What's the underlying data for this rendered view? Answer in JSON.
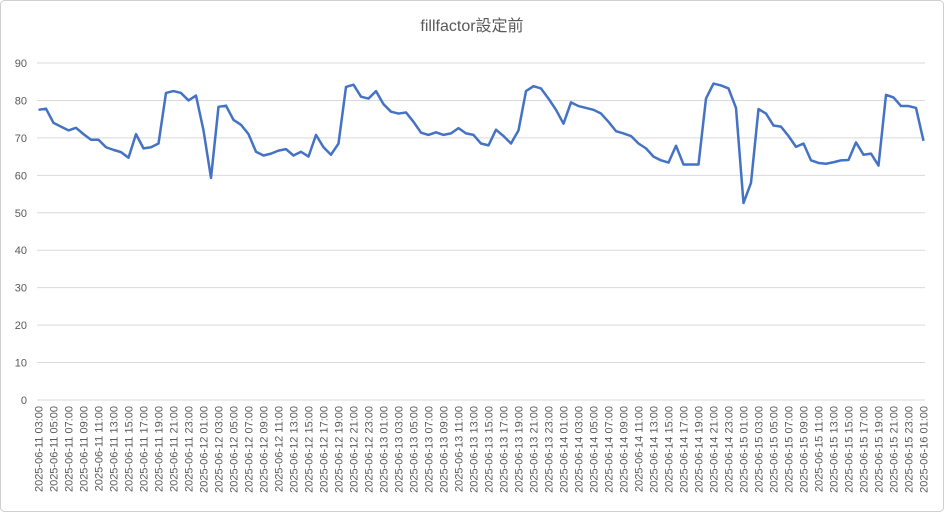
{
  "chart_data": {
    "type": "line",
    "title": "fillfactor設定前",
    "categories": [
      "2025-06-11 03:00",
      null,
      "2025-06-11 05:00",
      null,
      "2025-06-11 07:00",
      null,
      "2025-06-11 09:00",
      null,
      "2025-06-11 11:00",
      null,
      "2025-06-11 13:00",
      null,
      "2025-06-11 15:00",
      null,
      "2025-06-11 17:00",
      null,
      "2025-06-11 19:00",
      null,
      "2025-06-11 21:00",
      null,
      "2025-06-11 23:00",
      null,
      "2025-06-12 01:00",
      null,
      "2025-06-12 03:00",
      null,
      "2025-06-12 05:00",
      null,
      "2025-06-12 07:00",
      null,
      "2025-06-12 09:00",
      null,
      "2025-06-12 11:00",
      null,
      "2025-06-12 13:00",
      null,
      "2025-06-12 15:00",
      null,
      "2025-06-12 17:00",
      null,
      "2025-06-12 19:00",
      null,
      "2025-06-12 21:00",
      null,
      "2025-06-12 23:00",
      null,
      "2025-06-13 01:00",
      null,
      "2025-06-13 03:00",
      null,
      "2025-06-13 05:00",
      null,
      "2025-06-13 07:00",
      null,
      "2025-06-13 09:00",
      null,
      "2025-06-13 11:00",
      null,
      "2025-06-13 13:00",
      null,
      "2025-06-13 15:00",
      null,
      "2025-06-13 17:00",
      null,
      "2025-06-13 19:00",
      null,
      "2025-06-13 21:00",
      null,
      "2025-06-13 23:00",
      null,
      "2025-06-14 01:00",
      null,
      "2025-06-14 03:00",
      null,
      "2025-06-14 05:00",
      null,
      "2025-06-14 07:00",
      null,
      "2025-06-14 09:00",
      null,
      "2025-06-14 11:00",
      null,
      "2025-06-14 13:00",
      null,
      "2025-06-14 15:00",
      null,
      "2025-06-14 17:00",
      null,
      "2025-06-14 19:00",
      null,
      "2025-06-14 21:00",
      null,
      "2025-06-14 23:00",
      null,
      "2025-06-15 01:00",
      null,
      "2025-06-15 03:00",
      null,
      "2025-06-15 05:00",
      null,
      "2025-06-15 07:00",
      null,
      "2025-06-15 09:00",
      null,
      "2025-06-15 11:00",
      null,
      "2025-06-15 13:00",
      null,
      "2025-06-15 15:00",
      null,
      "2025-06-15 17:00",
      null,
      "2025-06-15 19:00",
      null,
      "2025-06-15 21:00",
      null,
      "2025-06-15 23:00",
      null,
      "2025-06-16 01:00"
    ],
    "series": [
      {
        "name": "fillfactor",
        "color": "#4472c4",
        "values": [
          77.5,
          77.8,
          74,
          73,
          72,
          72.7,
          71,
          69.5,
          69.5,
          67.5,
          66.8,
          66.2,
          64.7,
          71,
          67.2,
          67.5,
          68.5,
          82,
          82.5,
          82,
          80,
          81.3,
          72,
          59.3,
          78.3,
          78.6,
          74.8,
          73.5,
          71,
          66.3,
          65.3,
          65.8,
          66.6,
          67,
          65.3,
          66.3,
          65,
          70.8,
          67.5,
          65.5,
          68.5,
          83.6,
          84.2,
          81,
          80.5,
          82.5,
          79,
          77,
          76.5,
          76.8,
          74.3,
          71.4,
          70.8,
          71.5,
          70.8,
          71.2,
          72.6,
          71.2,
          70.8,
          68.5,
          68,
          72.2,
          70.5,
          68.5,
          72,
          82.5,
          83.8,
          83.2,
          80.5,
          77.5,
          73.8,
          79.5,
          78.5,
          78,
          77.5,
          76.5,
          74.3,
          71.8,
          71.2,
          70.5,
          68.5,
          67.2,
          65,
          64,
          63.4,
          67.9,
          62.9,
          62.9,
          62.9,
          80.5,
          84.5,
          84,
          83.2,
          78,
          52.6,
          58,
          77.7,
          76.5,
          73.3,
          73,
          70.5,
          67.6,
          68.5,
          64,
          63.3,
          63.1,
          63.5,
          64,
          64.1,
          68.8,
          65.5,
          65.8,
          62.6,
          81.5,
          80.8,
          78.5,
          78.5,
          78,
          69.2
        ]
      }
    ],
    "ylim": [
      0,
      90
    ],
    "yticks": [
      0,
      10,
      20,
      30,
      40,
      50,
      60,
      70,
      80,
      90
    ],
    "grid": true
  }
}
